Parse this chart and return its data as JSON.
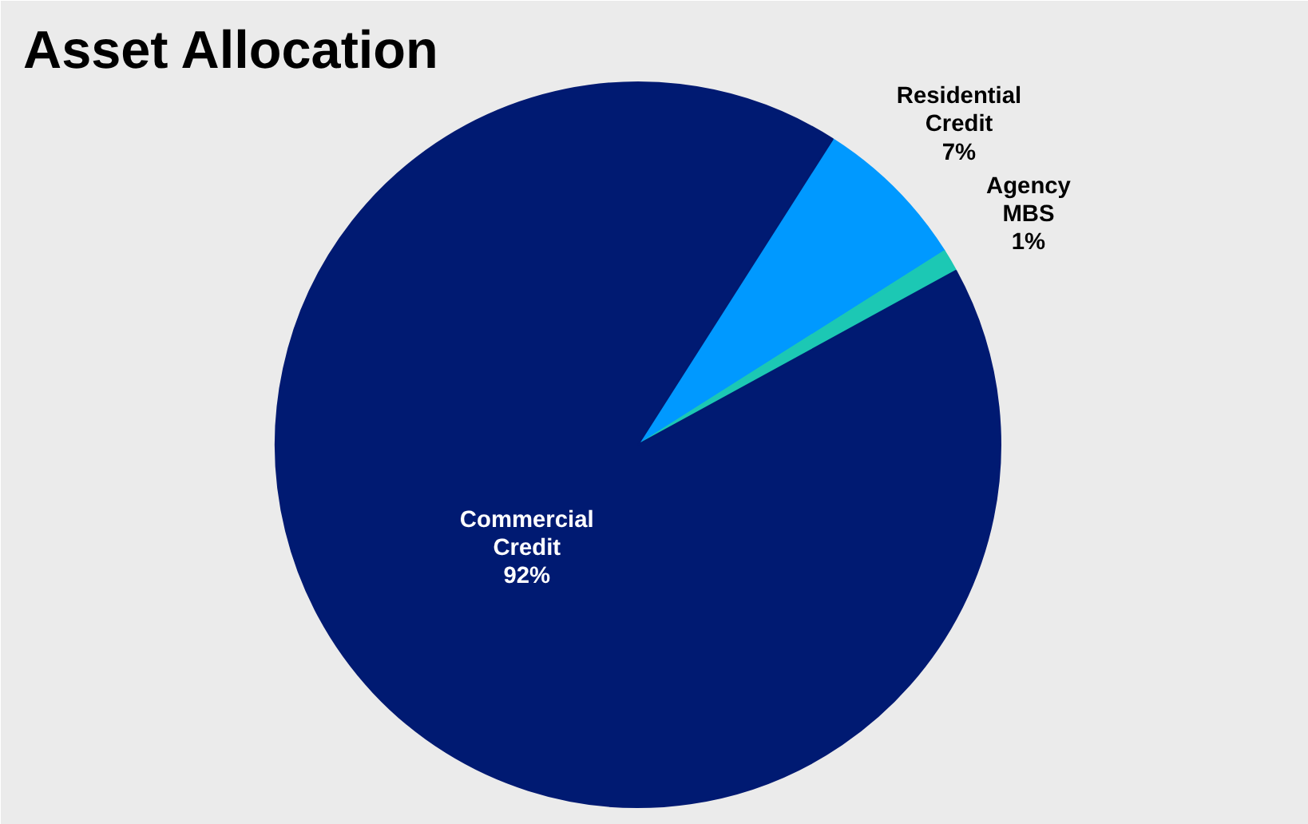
{
  "chart_data": {
    "type": "pie",
    "title": "Asset Allocation",
    "categories": [
      "Residential Credit",
      "Agency MBS",
      "Commercial Credit"
    ],
    "values": [
      7,
      1,
      92
    ],
    "colors": [
      "#0099ff",
      "#1cc8b4",
      "#001a72"
    ],
    "value_labels": [
      "7%",
      "1%",
      "92%"
    ]
  }
}
